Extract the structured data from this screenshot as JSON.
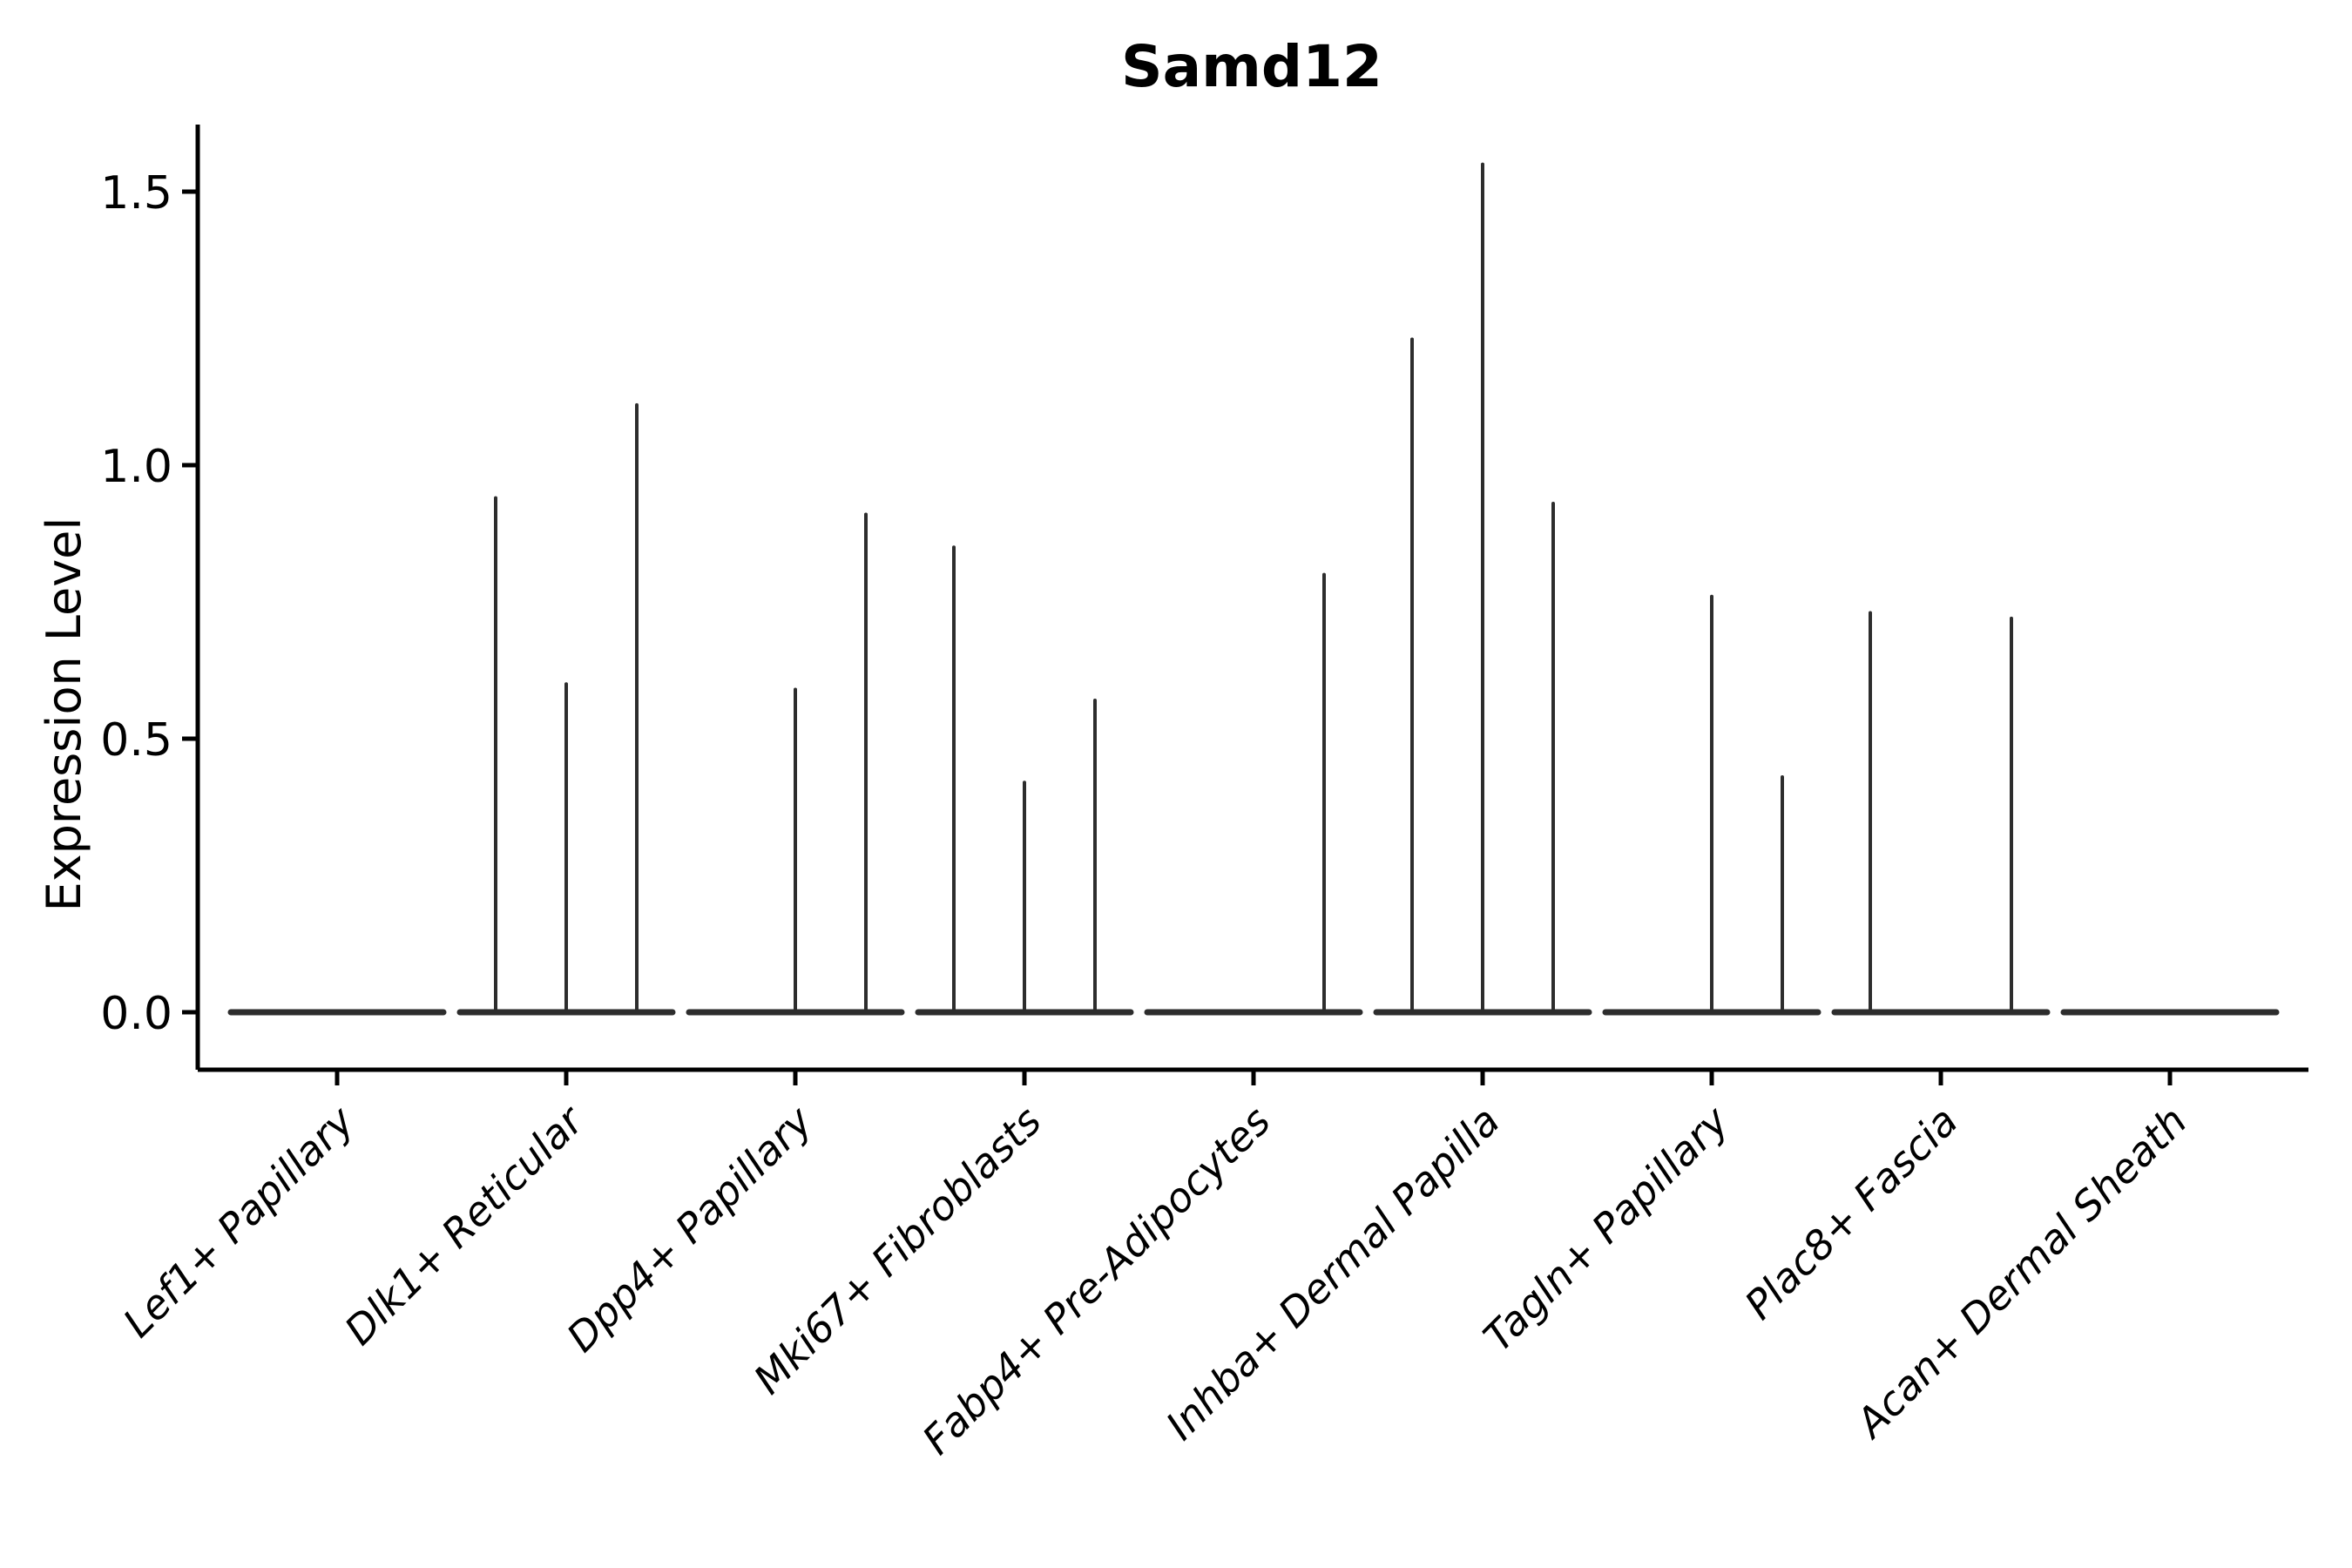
{
  "chart_data": {
    "type": "violin",
    "title": "Samd12",
    "xlabel": "",
    "ylabel": "Expression Level",
    "ytick_labels": [
      "0.0",
      "0.5",
      "1.0",
      "1.5"
    ],
    "ytick_values": [
      0.0,
      0.5,
      1.0,
      1.5
    ],
    "ylim": [
      -0.1,
      1.62
    ],
    "grid": false,
    "legend": "none",
    "violins_per_category": 3,
    "categories": [
      "Lef1+ Papillary",
      "Dlk1+ Reticular",
      "Dpp4+ Papillary",
      "Mki67+ Fibroblasts",
      "Fabp4+ Pre-Adipocytes",
      "Inhba+ Dermal Papilla",
      "Tagln+ Papillary",
      "Plac8+ Fascia",
      "Acan+ Dermal Sheath"
    ],
    "groups": [
      {
        "label": "Lef1+ Papillary",
        "spike_heights": [
          0,
          0,
          0
        ]
      },
      {
        "label": "Dlk1+ Reticular",
        "spike_heights": [
          0.94,
          0.6,
          1.11
        ]
      },
      {
        "label": "Dpp4+ Papillary",
        "spike_heights": [
          0,
          0.59,
          0.91
        ]
      },
      {
        "label": "Mki67+ Fibroblasts",
        "spike_heights": [
          0.85,
          0.42,
          0.57
        ]
      },
      {
        "label": "Fabp4+ Pre-Adipocytes",
        "spike_heights": [
          0,
          0,
          0.8
        ]
      },
      {
        "label": "Inhba+ Dermal Papilla",
        "spike_heights": [
          1.23,
          1.55,
          0.93
        ]
      },
      {
        "label": "Tagln+ Papillary",
        "spike_heights": [
          0,
          0.76,
          0.43
        ]
      },
      {
        "label": "Plac8+ Fascia",
        "spike_heights": [
          0.73,
          0,
          0.72
        ]
      },
      {
        "label": "Acan+ Dermal Sheath",
        "spike_heights": [
          0,
          0,
          0
        ]
      }
    ],
    "colors": {
      "violin_stroke": "#2d2d2d",
      "axis": "#000000",
      "text": "#000000",
      "background": "#ffffff"
    }
  }
}
